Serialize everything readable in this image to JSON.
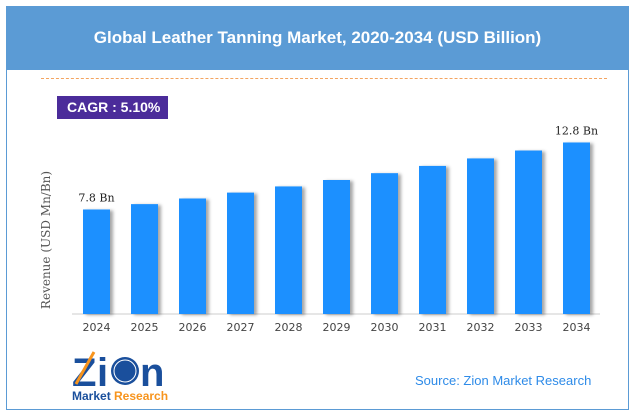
{
  "header": {
    "title": "Global Leather Tanning Market, 2020-2034 (USD Billion)"
  },
  "cagr": {
    "label": "CAGR : 5.10%"
  },
  "source": "Source: Zion Market Research",
  "logo": {
    "text_top": "Zion",
    "text_bottom_1": "Market",
    "text_bottom_2": "Research"
  },
  "colors": {
    "header": "#5b9bd5",
    "bar": "#1e90ff",
    "cagr_box": "#4b2c9a",
    "source": "#2e8be8"
  },
  "chart_data": {
    "type": "bar",
    "title": "Global Leather Tanning Market, 2020-2034 (USD Billion)",
    "ylabel": "Revenue (USD Mn/Bn)",
    "categories": [
      "2024",
      "2025",
      "2026",
      "2027",
      "2028",
      "2029",
      "2030",
      "2031",
      "2032",
      "2033",
      "2034"
    ],
    "values": [
      7.8,
      8.2,
      8.62,
      9.06,
      9.52,
      10.0,
      10.51,
      11.05,
      11.61,
      12.2,
      12.8
    ],
    "data_labels": {
      "0": "7.8 Bn",
      "10": "12.8 Bn"
    },
    "ylim": [
      0,
      14
    ],
    "grid": false
  }
}
